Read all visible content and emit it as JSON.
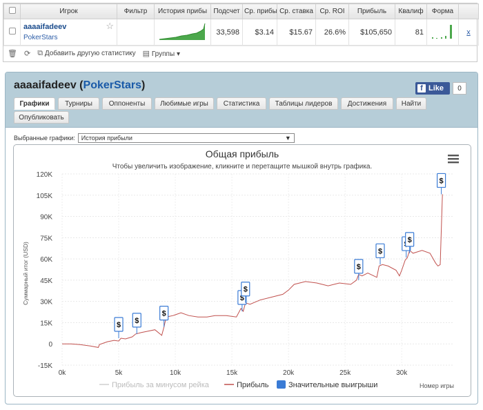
{
  "table": {
    "headers": [
      "",
      "Игрок",
      "Фильтр",
      "История прибы",
      "Подсчет",
      "Ср. прибы",
      "Ср. ставка",
      "Ср. ROI",
      "Прибыль",
      "Квалиф",
      "Форма",
      ""
    ],
    "row": {
      "player_name": "aaaaifadeev",
      "site": "PokerStars",
      "count": "33,598",
      "avg_profit": "$3.14",
      "avg_stake": "$15.67",
      "avg_roi": "26.6%",
      "profit": "$105,650",
      "qualif": "81",
      "remove": "x"
    }
  },
  "toolbar": {
    "add_stats": "Добавить другую статистику",
    "groups": "Группы"
  },
  "profile": {
    "name": "aaaaifadeev",
    "open_paren": " (",
    "site": "PokerStars",
    "close_paren": ")",
    "like_label": "Like",
    "like_count": "0",
    "tabs": [
      "Графики",
      "Турниры",
      "Оппоненты",
      "Любимые игры",
      "Статистика",
      "Таблицы лидеров",
      "Достижения",
      "Найти",
      "Опубликовать"
    ],
    "selected_charts_label": "Выбранные графики:",
    "selected_chart_value": "История прибыли"
  },
  "chart_data": {
    "type": "line",
    "title": "Общая прибыль",
    "subtitle": "Чтобы увеличить изображение, кликните и перетащите мышкой внутрь графика.",
    "ylabel": "Суммарный итог (USD)",
    "xlabel": "Номер игры",
    "x_ticks": [
      "0k",
      "5k",
      "10k",
      "15k",
      "20k",
      "25k",
      "30k"
    ],
    "y_ticks": [
      "-15K",
      "0",
      "15K",
      "30K",
      "45K",
      "60K",
      "75K",
      "90K",
      "105K",
      "120K"
    ],
    "xlim": [
      0,
      34500
    ],
    "ylim": [
      -15000,
      120000
    ],
    "grid": true,
    "legend_position": "bottom",
    "series": [
      {
        "name": "Прибыль",
        "color": "#c0504d",
        "x": [
          0,
          800,
          1600,
          2500,
          3200,
          3300,
          4000,
          4600,
          5000,
          5200,
          5600,
          6200,
          6500,
          7000,
          7600,
          8200,
          8800,
          9000,
          9200,
          9800,
          10500,
          11200,
          12000,
          12800,
          13500,
          14500,
          15400,
          15800,
          16000,
          16200,
          16600,
          17500,
          18500,
          19500,
          20000,
          20500,
          21500,
          22500,
          23500,
          24500,
          25500,
          26000,
          26200,
          26500,
          27000,
          27800,
          28000,
          28300,
          28800,
          29500,
          29800,
          30000,
          30300,
          30500,
          30700,
          31000,
          31800,
          32500,
          33000,
          33200,
          33400,
          33598
        ],
        "y": [
          0,
          0,
          -500,
          -1500,
          -2500,
          -500,
          1500,
          2500,
          2000,
          4000,
          3500,
          5000,
          7000,
          8000,
          9000,
          10000,
          6000,
          12000,
          19000,
          20000,
          22000,
          20000,
          19000,
          19000,
          20000,
          20000,
          19000,
          25000,
          23000,
          29000,
          28000,
          31000,
          33000,
          35000,
          38000,
          42000,
          44000,
          43000,
          41000,
          43000,
          42000,
          45000,
          49000,
          48000,
          50000,
          47000,
          55000,
          56000,
          55000,
          52000,
          48000,
          52000,
          59000,
          61000,
          66000,
          64000,
          66000,
          64000,
          57000,
          55000,
          56000,
          105650
        ]
      },
      {
        "name": "Прибыль за минусом рейка",
        "color": "#cfcfcf"
      },
      {
        "name": "Значительные выигрыши",
        "color": "#3a7bd5",
        "marker_label": "$",
        "x": [
          5000,
          6600,
          9000,
          15900,
          16200,
          26200,
          28100,
          30400,
          30700,
          33500
        ],
        "y": [
          4000,
          7000,
          12000,
          23000,
          29000,
          45000,
          56000,
          61000,
          64000,
          105650
        ]
      }
    ]
  }
}
